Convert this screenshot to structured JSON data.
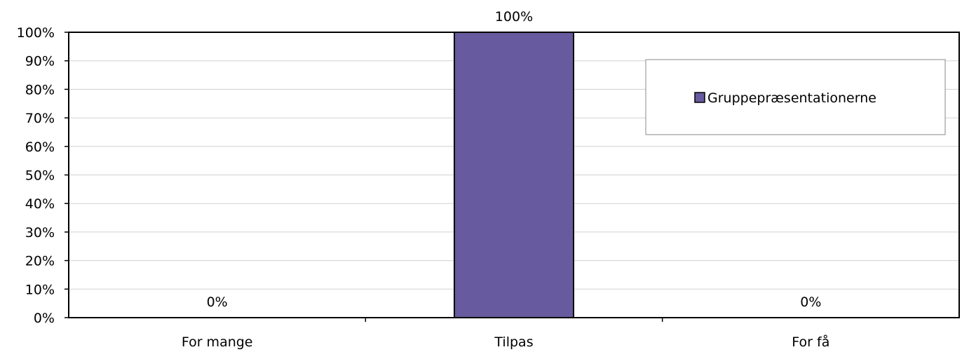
{
  "chart_data": {
    "type": "bar",
    "categories": [
      "For mange",
      "Tilpas",
      "For få"
    ],
    "series": [
      {
        "name": "Gruppepræsentationerne",
        "values": [
          0,
          100,
          0
        ],
        "color": "#675a9e"
      }
    ],
    "data_labels": [
      "0%",
      "100%",
      "0%"
    ],
    "y_ticks": [
      "0%",
      "10%",
      "20%",
      "30%",
      "40%",
      "50%",
      "60%",
      "70%",
      "80%",
      "90%",
      "100%"
    ],
    "ylim": [
      0,
      100
    ],
    "title": "",
    "xlabel": "",
    "ylabel": "",
    "grid": true,
    "legend_position": "top-right"
  }
}
